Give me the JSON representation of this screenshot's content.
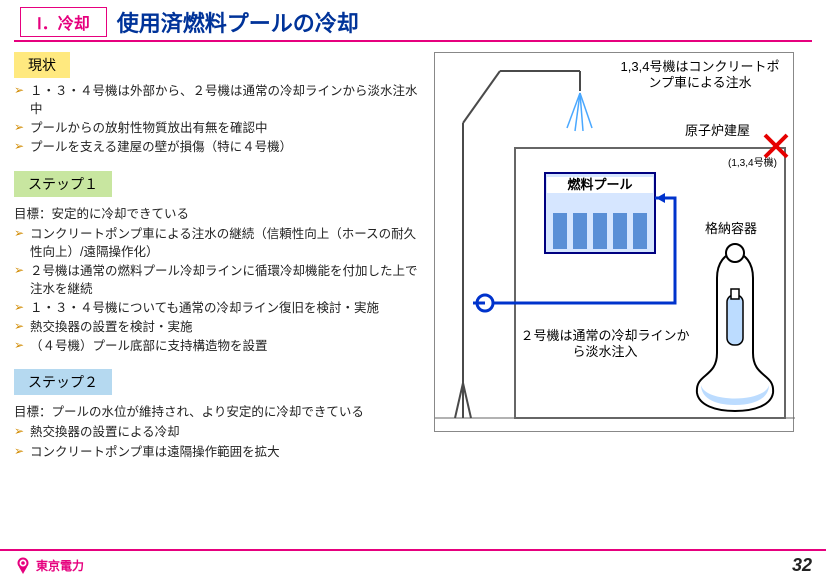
{
  "header": {
    "section_tag": "Ⅰ．冷却",
    "title": "使用済燃料プールの冷却"
  },
  "current": {
    "label": "現状",
    "items": [
      "１・３・４号機は外部から、２号機は通常の冷却ラインから淡水注水中",
      "プールからの放射性物質放出有無を確認中",
      "プールを支える建屋の壁が損傷（特に４号機）"
    ]
  },
  "step1": {
    "label": "ステップ１",
    "goal": "目標：安定的に冷却できている",
    "items": [
      "コンクリートポンプ車による注水の継続（信頼性向上（ホースの耐久性向上）/遠隔操作化）",
      "２号機は通常の燃料プール冷却ラインに循環冷却機能を付加した上で注水を継続",
      "１・３・４号機についても通常の冷却ライン復旧を検討・実施",
      "熱交換器の設置を検討・実施",
      "（４号機）プール底部に支持構造物を設置"
    ]
  },
  "step2": {
    "label": "ステップ２",
    "goal": "目標：プールの水位が維持され、より安定的に冷却できている",
    "items": [
      "熱交換器の設置による冷却",
      "コンクリートポンプ車は遠隔操作範囲を拡大"
    ]
  },
  "diagram": {
    "pump_label": "1,3,4号機はコンクリートポンプ車による注水",
    "building_label": "原子炉建屋",
    "x_note": "(1,3,4号機)",
    "pool_label": "燃料プール",
    "vessel_label": "格納容器",
    "line2_label": "２号機は通常の冷却ラインから淡水注入",
    "colors": {
      "frame": "#888888",
      "building_border": "#666666",
      "pool_border": "#000080",
      "pool_fill": "#d6e6ff",
      "rod_fill": "#5a8fd6",
      "pipe": "#0033cc",
      "vessel_outline": "#000000",
      "vessel_water": "#bcdcff",
      "water_spray": "#4aa8ff",
      "pump_support": "#4a4a4a",
      "x_mark": "#e60000"
    }
  },
  "footer": {
    "company": "東京電力",
    "page": "32"
  }
}
